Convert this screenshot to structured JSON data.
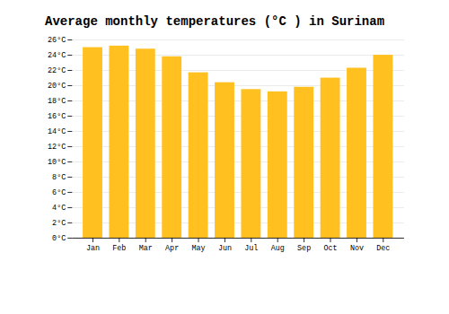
{
  "chart_data": {
    "type": "bar",
    "title": "Average monthly temperatures (°C ) in Surinam",
    "categories": [
      "Jan",
      "Feb",
      "Mar",
      "Apr",
      "May",
      "Jun",
      "Jul",
      "Aug",
      "Sep",
      "Oct",
      "Nov",
      "Dec"
    ],
    "values": [
      25.0,
      25.2,
      24.8,
      23.8,
      21.7,
      20.4,
      19.5,
      19.2,
      19.8,
      21.0,
      22.3,
      24.0
    ],
    "color": "#FFC020",
    "ylim": [
      0,
      26
    ],
    "yticks": [
      {
        "value": 0,
        "label": "0°C"
      },
      {
        "value": 2,
        "label": "2°C"
      },
      {
        "value": 4,
        "label": "4°C"
      },
      {
        "value": 6,
        "label": "6°C"
      },
      {
        "value": 8,
        "label": "8°C"
      },
      {
        "value": 10,
        "label": "10°C"
      },
      {
        "value": 12,
        "label": "12°C"
      },
      {
        "value": 14,
        "label": "14°C"
      },
      {
        "value": 16,
        "label": "16°C"
      },
      {
        "value": 18,
        "label": "18°C"
      },
      {
        "value": 20,
        "label": "20°C"
      },
      {
        "value": 22,
        "label": "22°C"
      },
      {
        "value": 24,
        "label": "24°C"
      },
      {
        "value": 26,
        "label": "26°C"
      }
    ],
    "grid": true
  }
}
